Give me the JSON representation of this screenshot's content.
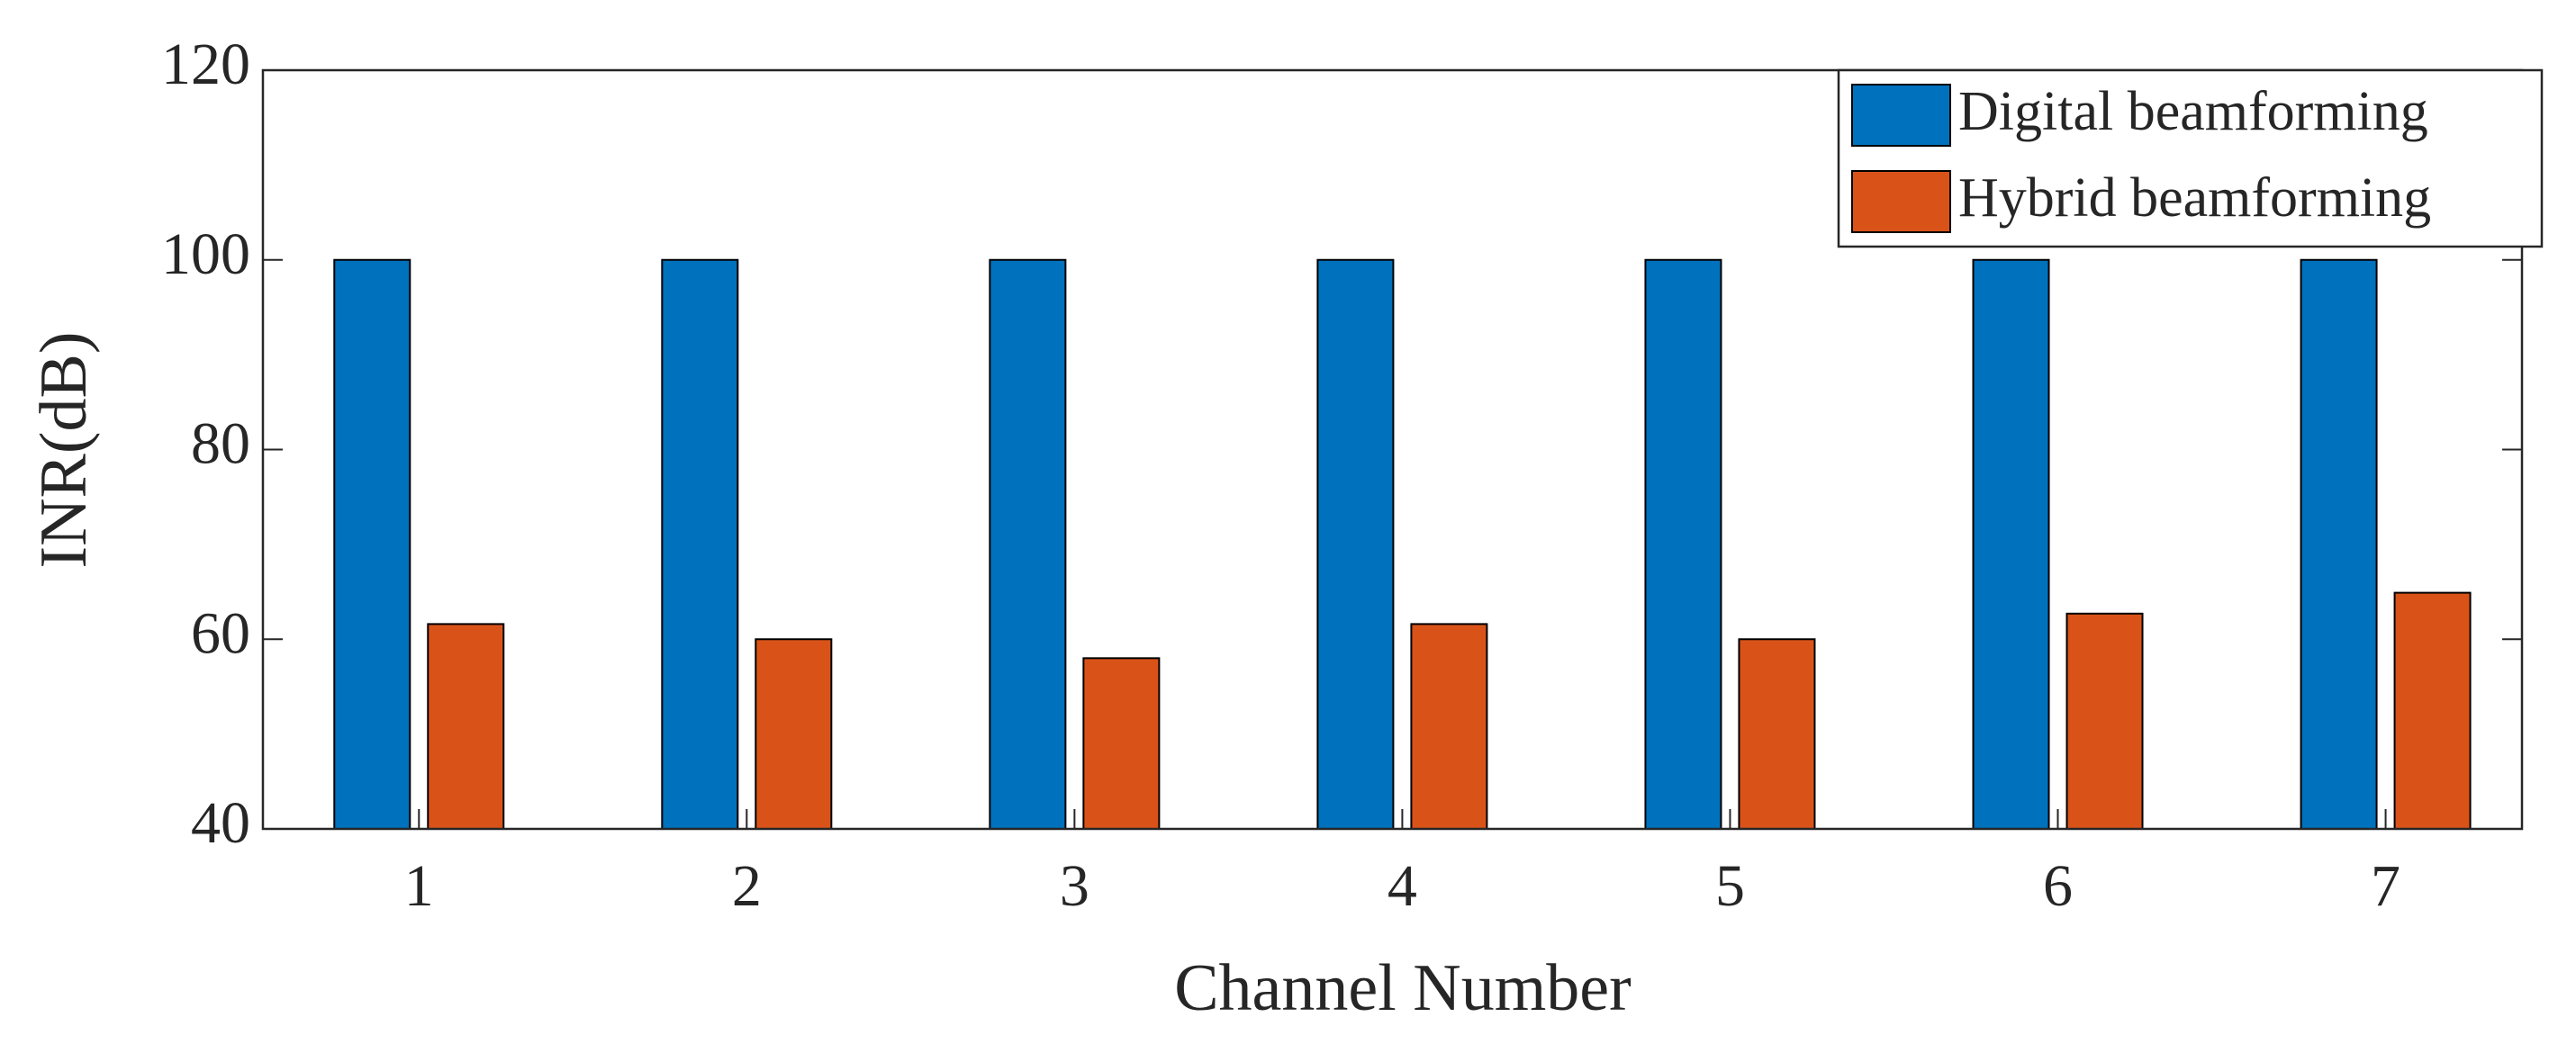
{
  "chart_data": {
    "type": "bar",
    "x_label": "Channel Number",
    "y_label": "INR(dB)",
    "categories": [
      "1",
      "2",
      "3",
      "4",
      "5",
      "6",
      "7"
    ],
    "series": [
      {
        "name": "Digital beamforming",
        "color": "#0072bd",
        "values": [
          100,
          100,
          100,
          100,
          100,
          100,
          100
        ]
      },
      {
        "name": "Hybrid beamforming",
        "color": "#d95319",
        "values": [
          61.6,
          60,
          58,
          61.6,
          60,
          62.7,
          64.9
        ]
      }
    ],
    "ylim": [
      40,
      120
    ],
    "yticks": [
      40,
      60,
      80,
      100,
      120
    ],
    "grid": false,
    "legend": "upper right"
  }
}
